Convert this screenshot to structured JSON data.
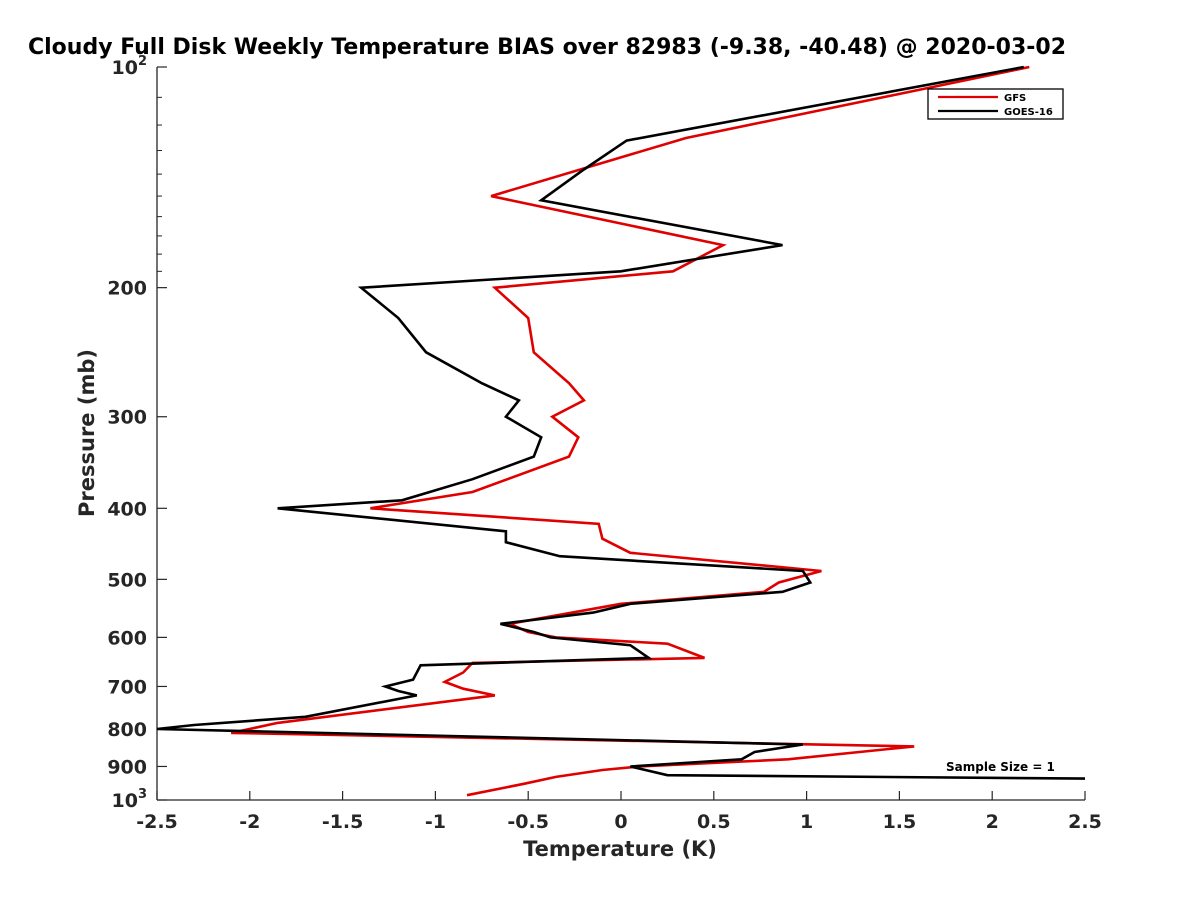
{
  "chart_data": {
    "type": "line",
    "title": "Cloudy Full Disk Weekly Temperature BIAS over 82983 (-9.38, -40.48) @ 2020-03-02",
    "xlabel": "Temperature (K)",
    "ylabel": "Pressure (mb)",
    "xlim": [
      -2.5,
      2.5
    ],
    "ylim": [
      100,
      1000
    ],
    "y_scale": "log",
    "y_reversed": true,
    "x_ticks": [
      "-2.5",
      "-2",
      "-1.5",
      "-1",
      "-0.5",
      "0",
      "0.5",
      "1",
      "1.5",
      "2",
      "2.5"
    ],
    "y_ticks": [
      {
        "value": 100,
        "base": "10",
        "exp": "2"
      },
      {
        "value": 200,
        "base": "200",
        "exp": ""
      },
      {
        "value": 300,
        "base": "300",
        "exp": ""
      },
      {
        "value": 400,
        "base": "400",
        "exp": ""
      },
      {
        "value": 500,
        "base": "500",
        "exp": ""
      },
      {
        "value": 600,
        "base": "600",
        "exp": ""
      },
      {
        "value": 700,
        "base": "700",
        "exp": ""
      },
      {
        "value": 800,
        "base": "800",
        "exp": ""
      },
      {
        "value": 900,
        "base": "900",
        "exp": ""
      },
      {
        "value": 1000,
        "base": "10",
        "exp": "3"
      }
    ],
    "grid": false,
    "legend_position": "top-right",
    "annotation": "Sample Size = 1",
    "series": [
      {
        "name": "GFS",
        "color": "#e00000",
        "points": [
          [
            2.2,
            100
          ],
          [
            0.35,
            125
          ],
          [
            -0.7,
            150
          ],
          [
            0.55,
            175
          ],
          [
            0.28,
            190
          ],
          [
            -0.68,
            200
          ],
          [
            -0.5,
            220
          ],
          [
            -0.47,
            245
          ],
          [
            -0.28,
            270
          ],
          [
            -0.2,
            285
          ],
          [
            -0.37,
            300
          ],
          [
            -0.23,
            320
          ],
          [
            -0.28,
            340
          ],
          [
            -0.8,
            380
          ],
          [
            -1.35,
            400
          ],
          [
            -0.12,
            420
          ],
          [
            -0.1,
            440
          ],
          [
            0.05,
            460
          ],
          [
            1.08,
            487
          ],
          [
            0.85,
            505
          ],
          [
            0.77,
            520
          ],
          [
            0.0,
            540
          ],
          [
            -0.6,
            575
          ],
          [
            -0.5,
            590
          ],
          [
            -0.35,
            600
          ],
          [
            0.25,
            612
          ],
          [
            0.45,
            640
          ],
          [
            -0.8,
            650
          ],
          [
            -0.85,
            670
          ],
          [
            -0.95,
            690
          ],
          [
            -0.85,
            705
          ],
          [
            -0.68,
            720
          ],
          [
            -1.85,
            785
          ],
          [
            -2.1,
            810
          ],
          [
            1.58,
            845
          ],
          [
            0.9,
            880
          ],
          [
            0.1,
            900
          ],
          [
            -0.1,
            910
          ],
          [
            -0.35,
            930
          ],
          [
            -0.52,
            950
          ],
          [
            -0.83,
            985
          ]
        ]
      },
      {
        "name": "GOES-16",
        "color": "#000000",
        "points": [
          [
            2.17,
            100
          ],
          [
            0.03,
            126
          ],
          [
            -0.2,
            138
          ],
          [
            -0.43,
            152
          ],
          [
            0.87,
            175
          ],
          [
            0.0,
            190
          ],
          [
            -1.4,
            200
          ],
          [
            -1.2,
            220
          ],
          [
            -1.05,
            245
          ],
          [
            -0.75,
            270
          ],
          [
            -0.55,
            285
          ],
          [
            -0.62,
            300
          ],
          [
            -0.43,
            320
          ],
          [
            -0.47,
            340
          ],
          [
            -0.8,
            365
          ],
          [
            -1.18,
            390
          ],
          [
            -1.85,
            400
          ],
          [
            -0.62,
            430
          ],
          [
            -0.62,
            445
          ],
          [
            -0.33,
            465
          ],
          [
            0.98,
            487
          ],
          [
            1.02,
            505
          ],
          [
            0.87,
            520
          ],
          [
            0.05,
            540
          ],
          [
            -0.15,
            555
          ],
          [
            -0.65,
            575
          ],
          [
            -0.47,
            590
          ],
          [
            -0.38,
            600
          ],
          [
            0.05,
            615
          ],
          [
            0.15,
            640
          ],
          [
            -1.08,
            655
          ],
          [
            -1.12,
            685
          ],
          [
            -1.27,
            700
          ],
          [
            -1.2,
            710
          ],
          [
            -1.1,
            720
          ],
          [
            -1.7,
            770
          ],
          [
            -2.3,
            790
          ],
          [
            -2.5,
            800
          ],
          [
            0.98,
            840
          ],
          [
            0.72,
            860
          ],
          [
            0.65,
            880
          ],
          [
            0.05,
            900
          ],
          [
            0.25,
            925
          ],
          [
            2.5,
            935
          ]
        ]
      }
    ]
  }
}
